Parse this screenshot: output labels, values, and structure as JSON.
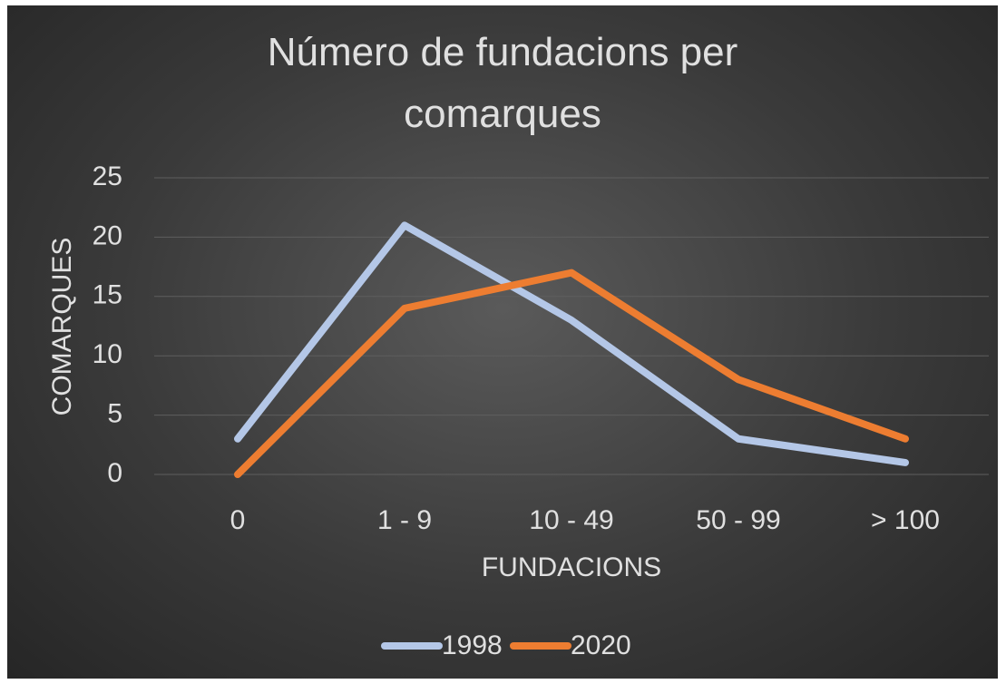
{
  "chart_data": {
    "type": "line",
    "title": "Número de fundacions per comarques",
    "x_label": "FUNDACIONS",
    "y_label": "COMARQUES",
    "categories": [
      "0",
      "1 - 9",
      "10 - 49",
      "50 - 99",
      "> 100"
    ],
    "series": [
      {
        "name": "1998",
        "color": "#b4c7e7",
        "values": [
          3,
          21,
          13,
          3,
          1
        ]
      },
      {
        "name": "2020",
        "color": "#ed7d31",
        "values": [
          0,
          14,
          17,
          8,
          3
        ]
      }
    ],
    "ylim": [
      0,
      25
    ],
    "yticks": [
      0,
      5,
      10,
      15,
      20,
      25
    ],
    "grid": true,
    "legend": "bottom"
  }
}
